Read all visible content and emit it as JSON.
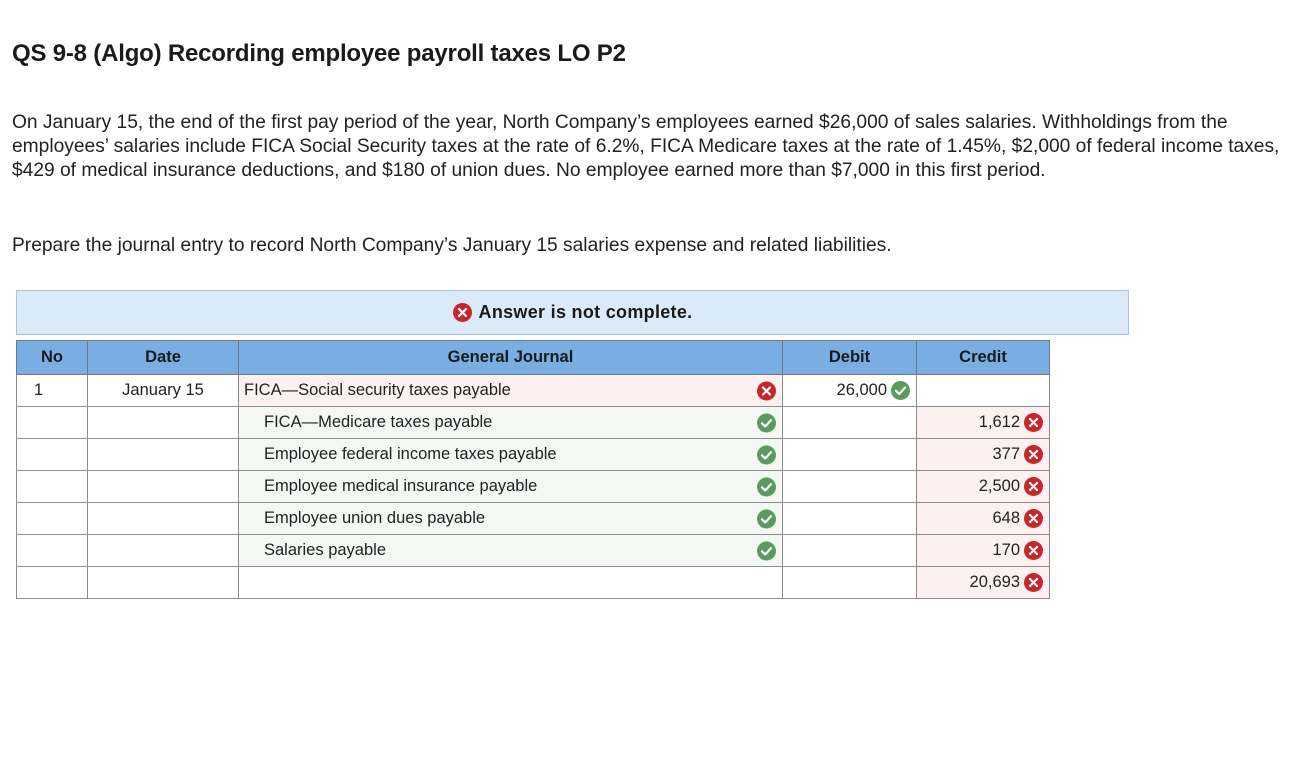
{
  "title": "QS 9-8 (Algo) Recording employee payroll taxes LO P2",
  "problem_text": "On January 15, the end of the first pay period of the year, North Company’s employees earned $26,000 of sales salaries. Withholdings from the employees’ salaries include FICA Social Security taxes at the rate of 6.2%, FICA Medicare taxes at the rate of 1.45%, $2,000 of federal income taxes, $429 of medical insurance deductions, and $180 of union dues. No employee earned more than $7,000 in this first period.",
  "instruction": "Prepare the journal entry to record North Company’s January 15 salaries expense and related liabilities.",
  "status": {
    "icon": "x-icon",
    "text": "Answer is not complete."
  },
  "journal": {
    "headers": {
      "no": "No",
      "date": "Date",
      "general_journal": "General Journal",
      "debit": "Debit",
      "credit": "Credit"
    },
    "rows": [
      {
        "no": "1",
        "date": "January 15",
        "account": "FICA—Social security taxes payable",
        "account_status": "incorrect",
        "debit": "26,000",
        "debit_status": "correct",
        "credit": "",
        "credit_status": ""
      },
      {
        "no": "",
        "date": "",
        "account": "FICA—Medicare taxes payable",
        "account_status": "correct",
        "debit": "",
        "debit_status": "",
        "credit": "1,612",
        "credit_status": "incorrect"
      },
      {
        "no": "",
        "date": "",
        "account": "Employee federal income taxes payable",
        "account_status": "correct",
        "debit": "",
        "debit_status": "",
        "credit": "377",
        "credit_status": "incorrect"
      },
      {
        "no": "",
        "date": "",
        "account": "Employee medical insurance payable",
        "account_status": "correct",
        "debit": "",
        "debit_status": "",
        "credit": "2,500",
        "credit_status": "incorrect"
      },
      {
        "no": "",
        "date": "",
        "account": "Employee union dues payable",
        "account_status": "correct",
        "debit": "",
        "debit_status": "",
        "credit": "648",
        "credit_status": "incorrect"
      },
      {
        "no": "",
        "date": "",
        "account": "Salaries payable",
        "account_status": "correct",
        "debit": "",
        "debit_status": "",
        "credit": "170",
        "credit_status": "incorrect"
      },
      {
        "no": "",
        "date": "",
        "account": "",
        "account_status": "",
        "debit": "",
        "debit_status": "",
        "credit": "20,693",
        "credit_status": "incorrect"
      }
    ]
  },
  "colors": {
    "header_bg": "#79ade3",
    "banner_bg": "#dbeaf9",
    "incorrect": "#c8262c",
    "correct": "#5a9a5e"
  }
}
